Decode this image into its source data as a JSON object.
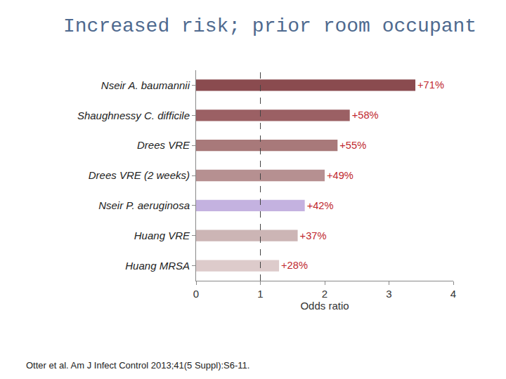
{
  "chart_data": {
    "type": "bar",
    "orientation": "horizontal",
    "title": "Increased risk; prior room occupant",
    "x_label": "Odds ratio",
    "categories": [
      "Nseir A. baumannii",
      "Shaughnessy C. difficile",
      "Drees VRE",
      "Drees VRE (2 weeks)",
      "Nseir P. aeruginosa",
      "Huang VRE",
      "Huang MRSA"
    ],
    "values": [
      3.41,
      2.39,
      2.2,
      2.0,
      1.69,
      1.58,
      1.29
    ],
    "annotations": [
      "+71%",
      "+58%",
      "+55%",
      "+49%",
      "+42%",
      "+37%",
      "+28%"
    ],
    "colors": [
      "#8a4b4f",
      "#9b6064",
      "#a8797a",
      "#b69091",
      "#c4b2e0",
      "#ccb5b5",
      "#ddcbcb"
    ],
    "xlim": [
      0,
      4
    ],
    "xticks": [
      0,
      1,
      2,
      3,
      4
    ],
    "reference_line": {
      "value": 1,
      "line_style": "dashed"
    },
    "source": "Otter et al. Am J Infect Control 2013;41(5 Suppl):S6-11.",
    "grid": false
  }
}
